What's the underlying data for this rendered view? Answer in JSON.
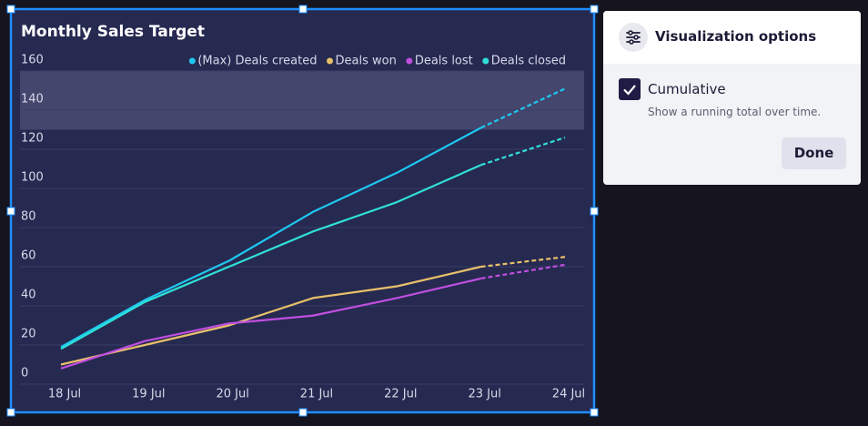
{
  "chart_data": {
    "type": "line",
    "title": "Monthly Sales Target",
    "categories": [
      "18 Jul",
      "19 Jul",
      "20 Jul",
      "21 Jul",
      "22 Jul",
      "23 Jul",
      "24 Jul"
    ],
    "series": [
      {
        "name": "(Max) Deals created",
        "color": "#1ec8f0",
        "values": [
          19,
          43,
          63,
          88,
          108,
          131,
          151
        ]
      },
      {
        "name": "Deals won",
        "color": "#e8c06a",
        "values": [
          10,
          20,
          30,
          44,
          50,
          60,
          65
        ]
      },
      {
        "name": "Deals lost",
        "color": "#c04fe0",
        "values": [
          8,
          22,
          31,
          35,
          44,
          54,
          61
        ]
      },
      {
        "name": "Deals closed",
        "color": "#2fe0d8",
        "values": [
          18,
          42,
          60,
          78,
          93,
          112,
          126
        ]
      }
    ],
    "ylim": [
      0,
      160
    ],
    "yticks": [
      0,
      20,
      40,
      60,
      80,
      100,
      120,
      140,
      160
    ],
    "target_band": [
      130,
      160
    ],
    "grid": true,
    "legend": "top-right"
  },
  "panel": {
    "title": "Visualization options",
    "option": {
      "label": "Cumulative",
      "description": "Show a running total over time.",
      "checked": true
    },
    "button": "Done"
  }
}
